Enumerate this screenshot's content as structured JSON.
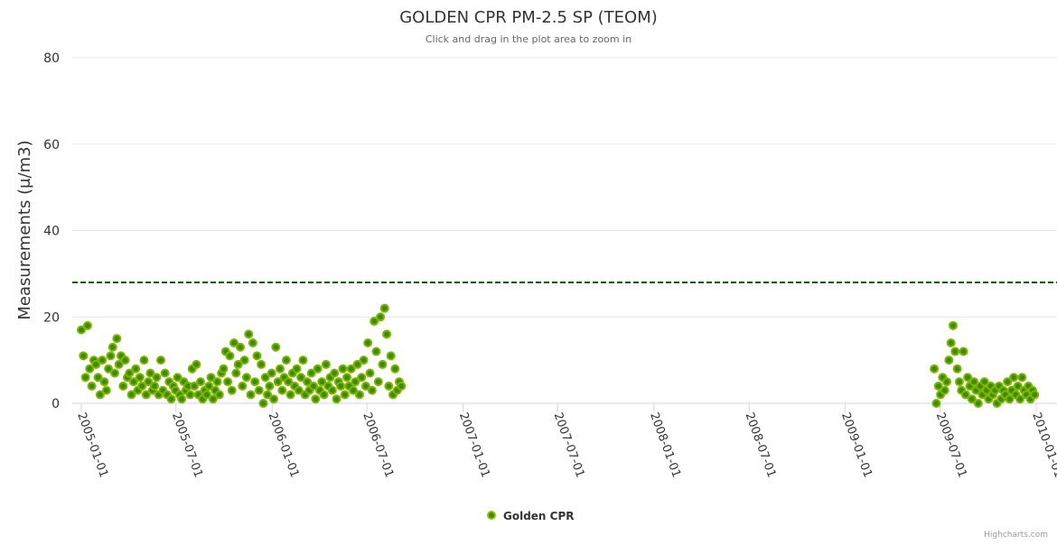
{
  "chart_data": {
    "type": "scatter",
    "title": "GOLDEN CPR PM-2.5 SP (TEOM)",
    "subtitle": "Click and drag in the plot area to zoom in",
    "ylabel": "Measurements (μ/m3)",
    "xlabel": "",
    "ylim": [
      0,
      80
    ],
    "yticks": [
      "0",
      "20",
      "40",
      "60",
      "80"
    ],
    "xlim": [
      "2005-01-01",
      "2010-01-01"
    ],
    "xticks": [
      "2005-01-01",
      "2005-07-01",
      "2006-01-01",
      "2006-07-01",
      "2007-01-01",
      "2007-07-01",
      "2008-01-01",
      "2008-07-01",
      "2009-01-01",
      "2009-07-01",
      "2010-01-01"
    ],
    "grid": true,
    "threshold": {
      "value": 28,
      "color": "#006400",
      "style": "dashed"
    },
    "legend": {
      "position": "bottom-center"
    },
    "credits": "Highcharts.com",
    "series": [
      {
        "name": "Golden CPR",
        "color": "#7cb500",
        "segments": [
          {
            "start": "2005-01-01",
            "step_days": 4,
            "values": [
              17,
              11,
              6,
              18,
              8,
              4,
              10,
              9,
              6,
              2,
              10,
              5,
              3,
              8,
              11,
              13,
              7,
              15,
              9,
              11,
              4,
              10,
              6,
              7,
              2,
              5,
              8,
              3,
              6,
              4,
              10,
              2,
              5,
              7,
              3,
              4,
              6,
              2,
              10,
              3,
              7,
              2,
              5,
              1,
              4,
              3,
              6,
              2,
              1,
              5,
              3,
              4,
              2,
              8,
              4,
              9,
              2,
              5,
              1,
              3,
              2,
              4,
              6,
              1,
              3,
              5,
              2,
              7,
              8,
              12,
              5,
              11,
              3,
              14,
              7,
              9,
              13,
              4,
              10,
              6,
              16,
              2,
              14,
              5,
              11,
              3,
              9,
              0,
              6,
              2,
              4,
              7,
              1,
              13,
              5,
              8,
              3,
              6,
              10,
              5,
              2,
              7,
              4,
              8,
              3,
              6,
              10,
              2,
              5,
              3,
              7,
              4,
              1,
              8,
              3,
              5,
              2,
              9,
              4,
              6,
              3,
              7,
              1,
              5,
              4,
              8,
              2,
              6,
              4,
              8,
              3,
              5,
              9,
              2,
              6,
              10,
              4,
              14,
              7,
              3,
              19,
              12,
              5,
              20,
              9,
              22,
              16,
              4,
              11,
              2,
              8,
              3,
              5,
              4
            ]
          },
          {
            "start": "2009-06-20",
            "step_days": 4,
            "values": [
              8,
              0,
              4,
              2,
              6,
              3,
              5,
              10,
              14,
              18,
              12,
              8,
              5,
              3,
              12,
              2,
              6,
              4,
              1,
              5,
              3,
              0,
              4,
              2,
              5,
              3,
              1,
              4,
              2,
              3,
              0,
              4,
              1,
              3,
              2,
              5,
              1,
              3,
              6,
              2,
              4,
              1,
              6,
              3,
              2,
              4,
              1,
              3,
              2
            ]
          }
        ]
      }
    ]
  }
}
